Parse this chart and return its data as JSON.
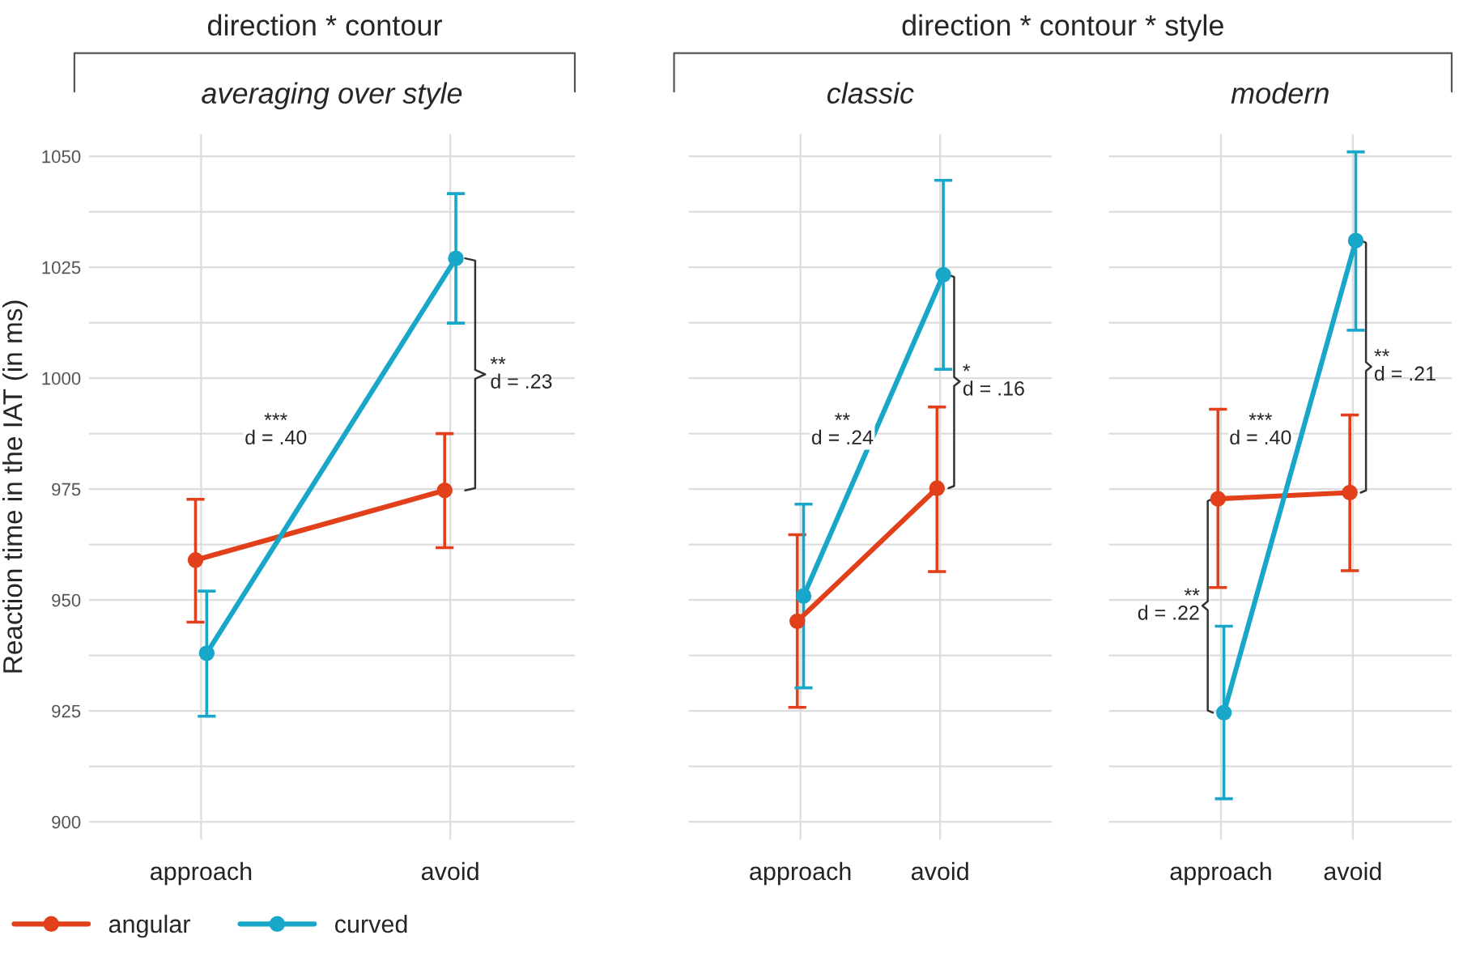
{
  "chart_data": [
    {
      "type": "line",
      "title": "direction * contour",
      "subtitle": "averaging over style",
      "ylabel": "Reaction time in the IAT (in ms)",
      "categories": [
        "approach",
        "avoid"
      ],
      "series": [
        {
          "name": "angular",
          "color": "#e1401b",
          "values": [
            959,
            974.7
          ],
          "errors": [
            [
              945,
              972.7
            ],
            [
              961.8,
              987.5
            ]
          ]
        },
        {
          "name": "curved",
          "color": "#18a7c9",
          "values": [
            938,
            1027
          ],
          "errors": [
            [
              923.8,
              952
            ],
            [
              1012.4,
              1041.6
            ]
          ]
        }
      ],
      "ylim": [
        896,
        1055
      ],
      "yticks": [
        900,
        {
          "value": 912.5,
          "label": null
        },
        925,
        {
          "value": 937.5,
          "label": null
        },
        950,
        {
          "value": 962.5,
          "label": null
        },
        975,
        {
          "value": 987.5,
          "label": null
        },
        1000,
        {
          "value": 1012.5,
          "label": null
        },
        1025,
        {
          "value": 1037.5,
          "label": null
        },
        1050
      ],
      "grid": true,
      "marker": "circle",
      "line_style": "solid",
      "legend": "bottom",
      "annotations": [
        "***\nd = .40",
        "**\nd = .23"
      ]
    },
    {
      "type": "line",
      "title": "direction * contour * style",
      "subtitle": "classic",
      "categories": [
        "approach",
        "avoid"
      ],
      "series": [
        {
          "color": "#e1401b",
          "values": [
            945.2,
            975.2
          ],
          "errors": [
            [
              925.8,
              964.7
            ],
            [
              956.4,
              993.5
            ]
          ]
        },
        {
          "color": "#18a7c9",
          "values": [
            950.9,
            1023.3
          ],
          "errors": [
            [
              930.2,
              971.6
            ],
            [
              1002,
              1044.6
            ]
          ]
        }
      ],
      "ylim": [
        896,
        1055
      ],
      "yticks": [
        900,
        {
          "value": 912.5,
          "label": null
        },
        925,
        {
          "value": 937.5,
          "label": null
        },
        950,
        {
          "value": 962.5,
          "label": null
        },
        975,
        {
          "value": 987.5,
          "label": null
        },
        1000,
        {
          "value": 1012.5,
          "label": null
        },
        1025,
        {
          "value": 1037.5,
          "label": null
        },
        1050
      ],
      "tick_labels": "x",
      "grid": true,
      "marker": "circle",
      "line_style": "solid",
      "annotations": [
        "**\nd = .24",
        "*\nd = .16"
      ]
    },
    {
      "type": "line",
      "subtitle": "modern",
      "categories": [
        "approach",
        "avoid"
      ],
      "series": [
        {
          "color": "#e1401b",
          "values": [
            972.8,
            974.2
          ],
          "errors": [
            [
              952.8,
              993
            ],
            [
              956.6,
              991.7
            ]
          ]
        },
        {
          "color": "#18a7c9",
          "values": [
            924.6,
            1031
          ],
          "errors": [
            [
              905.2,
              944.1
            ],
            [
              1010.8,
              1051
            ]
          ]
        }
      ],
      "ylim": [
        896,
        1055
      ],
      "yticks": [
        900,
        {
          "value": 912.5,
          "label": null
        },
        925,
        {
          "value": 937.5,
          "label": null
        },
        950,
        {
          "value": 962.5,
          "label": null
        },
        975,
        {
          "value": 987.5,
          "label": null
        },
        1000,
        {
          "value": 1012.5,
          "label": null
        },
        1025,
        {
          "value": 1037.5,
          "label": null
        },
        1050
      ],
      "tick_labels": "x",
      "grid": true,
      "marker": "circle",
      "line_style": "solid",
      "annotations": [
        "***\nd = .40",
        "**\nd = .21",
        "**\nd = .22"
      ]
    }
  ]
}
